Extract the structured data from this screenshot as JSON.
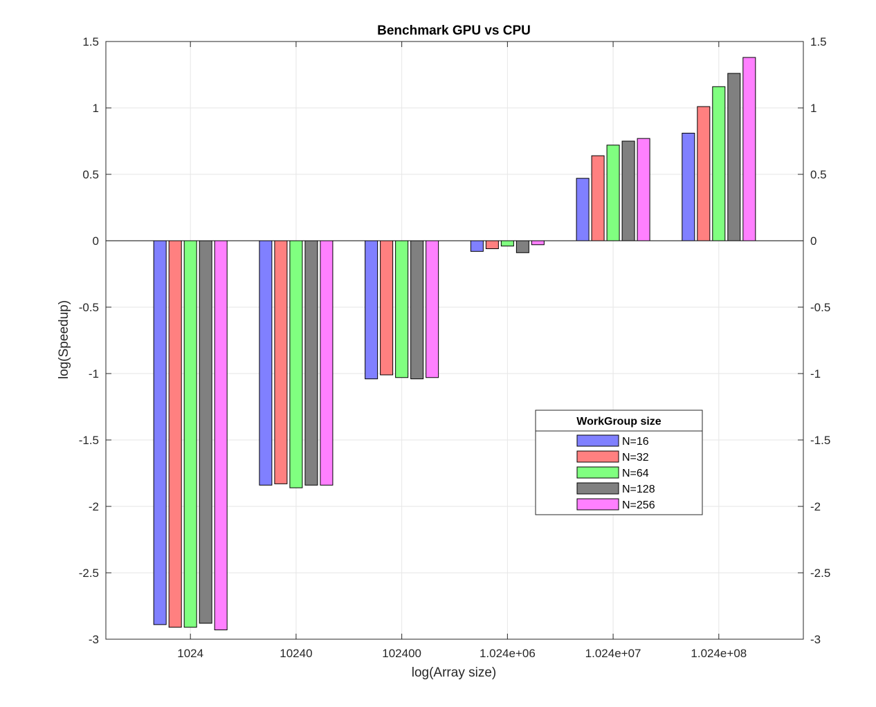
{
  "chart_data": {
    "type": "bar",
    "title": "Benchmark GPU vs CPU",
    "xlabel": "log(Array size)",
    "ylabel": "log(Speedup)",
    "categories": [
      "1024",
      "10240",
      "102400",
      "1.024e+06",
      "1.024e+07",
      "1.024e+08"
    ],
    "ylim": [
      -3,
      1.5
    ],
    "yticks": [
      "-3",
      "-2.5",
      "-2",
      "-1.5",
      "-1",
      "-0.5",
      "0",
      "0.5",
      "1",
      "1.5"
    ],
    "ytick_values": [
      -3,
      -2.5,
      -2,
      -1.5,
      -1,
      -0.5,
      0,
      0.5,
      1,
      1.5
    ],
    "grid": true,
    "legend": {
      "title": "WorkGroup size",
      "placement": "lower-right"
    },
    "series": [
      {
        "name": "N=16",
        "color": "#8080ff",
        "values": [
          -2.89,
          -1.84,
          -1.04,
          -0.08,
          0.47,
          0.81
        ]
      },
      {
        "name": "N=32",
        "color": "#ff8080",
        "values": [
          -2.91,
          -1.83,
          -1.01,
          -0.06,
          0.64,
          1.01
        ]
      },
      {
        "name": "N=64",
        "color": "#80ff80",
        "values": [
          -2.91,
          -1.86,
          -1.03,
          -0.04,
          0.72,
          1.16
        ]
      },
      {
        "name": "N=128",
        "color": "#808080",
        "values": [
          -2.88,
          -1.84,
          -1.04,
          -0.09,
          0.75,
          1.26
        ]
      },
      {
        "name": "N=256",
        "color": "#ff80ff",
        "values": [
          -2.93,
          -1.84,
          -1.03,
          -0.03,
          0.77,
          1.38
        ]
      }
    ]
  }
}
